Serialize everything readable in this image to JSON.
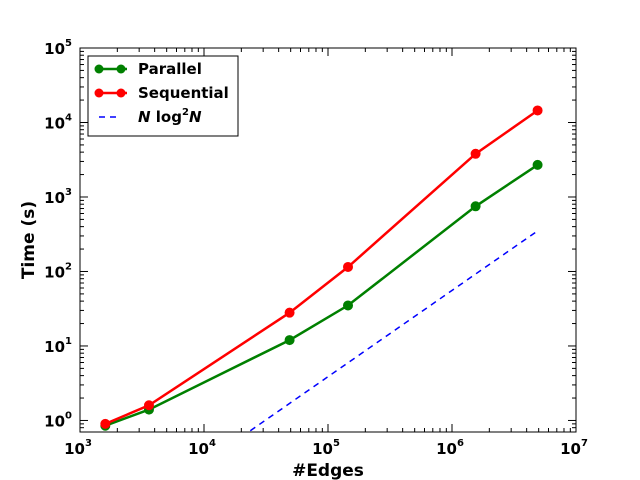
{
  "chart_data": {
    "type": "line",
    "xlabel": "#Edges",
    "ylabel": "Time (s)",
    "xscale": "log",
    "yscale": "log",
    "xlim": [
      1000,
      10000000
    ],
    "ylim": [
      0.7,
      100000
    ],
    "grid": false,
    "legend_position": "top-left",
    "x_ticks": [
      {
        "value": 1000,
        "base": "10",
        "exp": "3"
      },
      {
        "value": 10000,
        "base": "10",
        "exp": "4"
      },
      {
        "value": 100000,
        "base": "10",
        "exp": "5"
      },
      {
        "value": 1000000,
        "base": "10",
        "exp": "6"
      },
      {
        "value": 10000000,
        "base": "10",
        "exp": "7"
      }
    ],
    "y_ticks": [
      {
        "value": 1,
        "base": "10",
        "exp": "0"
      },
      {
        "value": 10,
        "base": "10",
        "exp": "1"
      },
      {
        "value": 100,
        "base": "10",
        "exp": "2"
      },
      {
        "value": 1000,
        "base": "10",
        "exp": "3"
      },
      {
        "value": 10000,
        "base": "10",
        "exp": "4"
      },
      {
        "value": 100000,
        "base": "10",
        "exp": "5"
      }
    ],
    "series": [
      {
        "name": "Parallel",
        "color": "#008000",
        "style": "solid-marker",
        "x": [
          1600,
          3600,
          49000,
          145000,
          1550000,
          4900000
        ],
        "y": [
          0.85,
          1.4,
          12,
          35,
          750,
          2700
        ]
      },
      {
        "name": "Sequential",
        "color": "#ff0000",
        "style": "solid-marker",
        "x": [
          1600,
          3600,
          49000,
          145000,
          1550000,
          4900000
        ],
        "y": [
          0.9,
          1.6,
          28,
          115,
          3800,
          14500
        ]
      },
      {
        "name_parts": [
          "N",
          " log",
          "2",
          "N"
        ],
        "color": "#0000ff",
        "style": "dashed",
        "x": [
          20000,
          4900000
        ],
        "y": [
          0.6,
          350
        ]
      }
    ]
  }
}
